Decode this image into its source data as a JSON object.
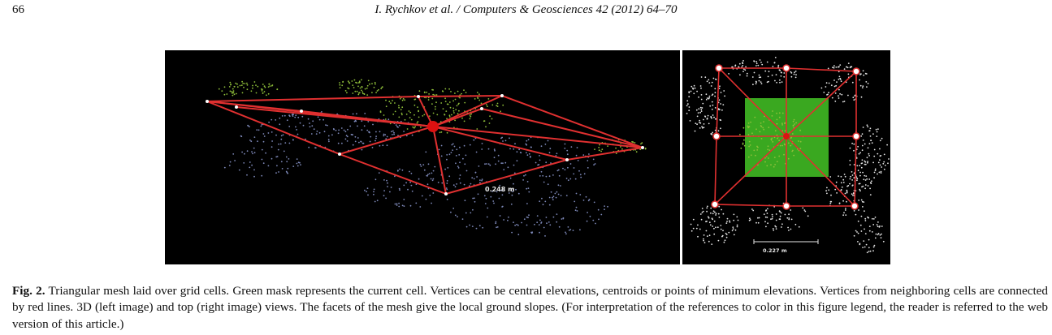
{
  "header": {
    "page_number": "66",
    "running_head": "I. Rychkov et al. / Computers & Geosciences 42 (2012) 64–70"
  },
  "figure": {
    "left_view": {
      "scale_label": "0.248 m"
    },
    "right_view": {
      "scale_label": "0.227 m"
    },
    "colors": {
      "mesh_lines": "#e03030",
      "vertex_left": "#ffffff",
      "central_vertex": "#dd1111",
      "cell_mask": "#3aa820",
      "points_green": "#8fbf3a",
      "points_blue": "#7d88b8",
      "points_white": "#e6e6e6",
      "background": "#000000"
    }
  },
  "caption": {
    "label": "Fig. 2.",
    "text": "Triangular mesh laid over grid cells. Green mask represents the current cell. Vertices can be central elevations, centroids or points of minimum elevations. Vertices from neighboring cells are connected by red lines. 3D (left image) and top (right image) views. The facets of the mesh give the local ground slopes. (For interpretation of the references to color in this figure legend, the reader is referred to the web version of this article.)"
  }
}
